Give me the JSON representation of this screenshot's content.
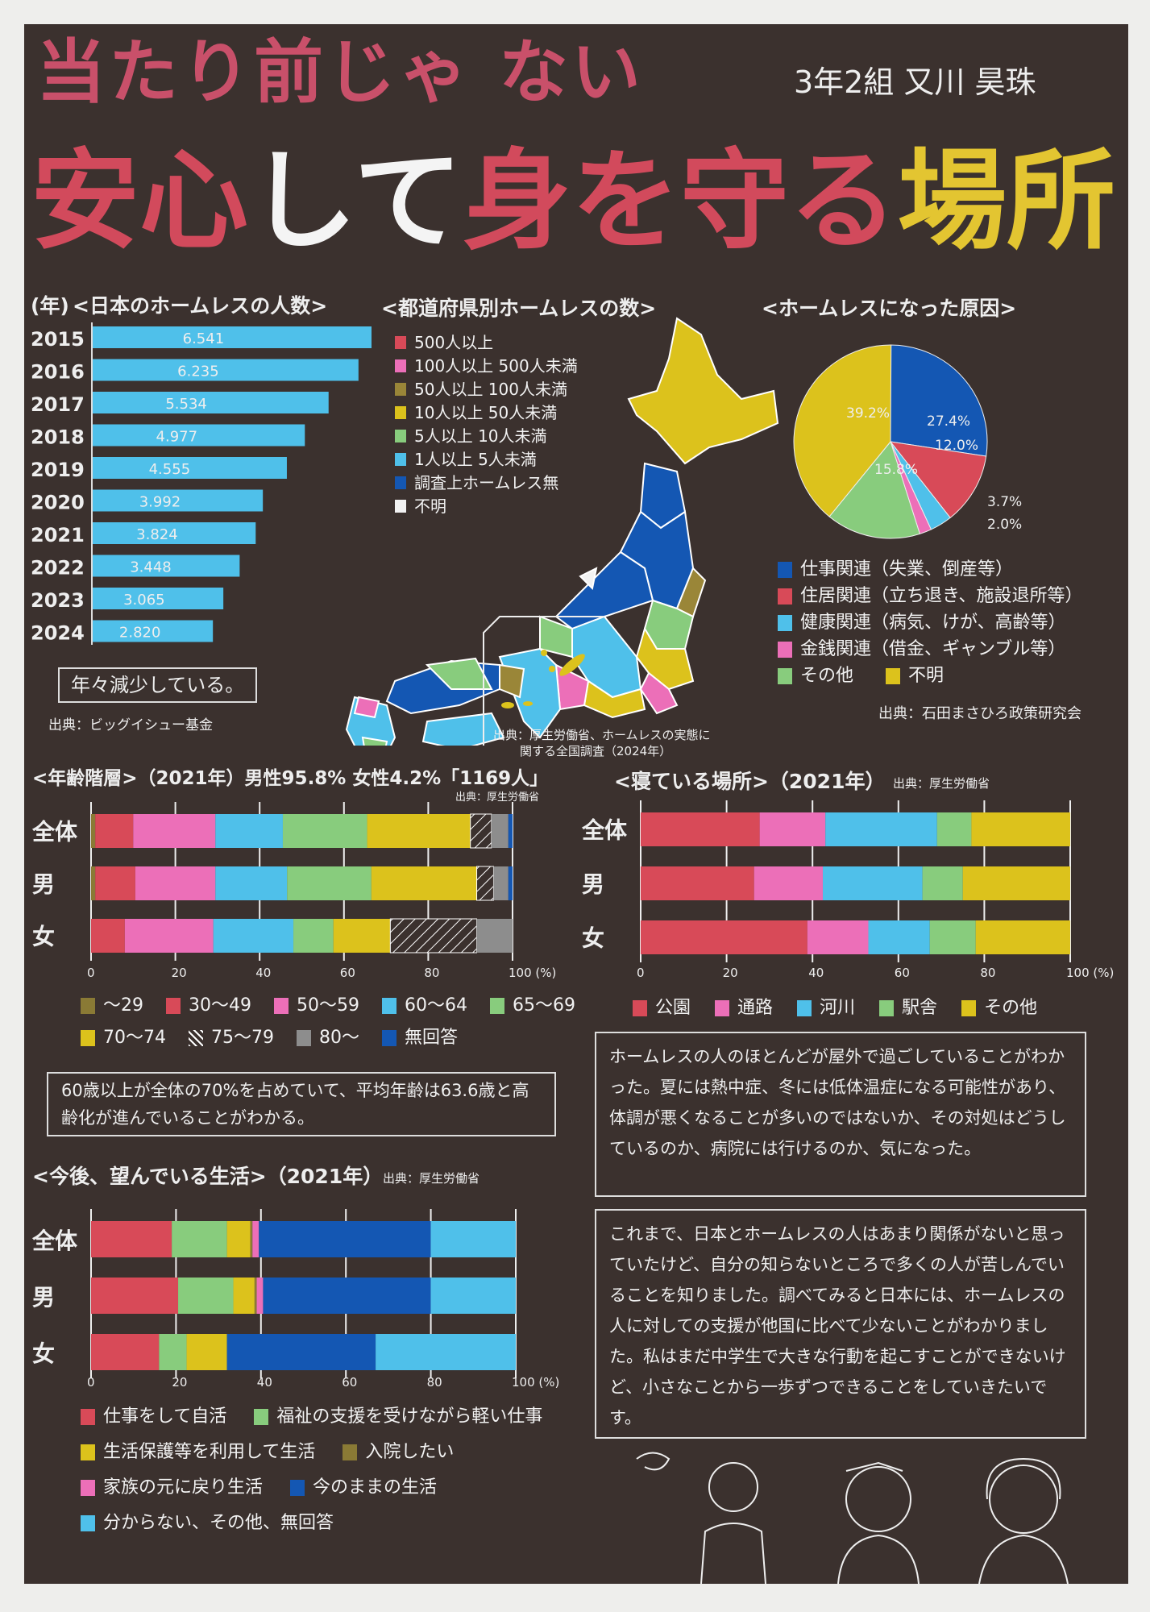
{
  "header": {
    "title_line1": "当たり前じゃ ない",
    "title_parts": [
      {
        "text": "安心",
        "color": "#d24a5c"
      },
      {
        "text": "して",
        "color": "#f4f4f4"
      },
      {
        "text": "身を守る",
        "color": "#d24a5c"
      },
      {
        "text": "場所",
        "color": "#e3c531"
      }
    ],
    "author": "3年2組 又川 昊珠"
  },
  "colors": {
    "board": "#3b312e",
    "red": "#d84a58",
    "pink": "#ec6fb8",
    "olive": "#8a7a35",
    "yellow": "#dcc21c",
    "green": "#88cc7d",
    "cyan": "#4fc0ea",
    "navy": "#1457b3",
    "white": "#f2f2f2",
    "gray": "#8d8d8d"
  },
  "chart_data": [
    {
      "id": "homeless_count",
      "type": "bar",
      "orientation": "horizontal",
      "title": "<日本のホームレスの人数>",
      "ylabel": "(年)",
      "categories": [
        "2015",
        "2016",
        "2017",
        "2018",
        "2019",
        "2020",
        "2021",
        "2022",
        "2023",
        "2024"
      ],
      "values": [
        6541,
        6235,
        5534,
        4977,
        4555,
        3992,
        3824,
        3448,
        3065,
        2820
      ],
      "value_labels": [
        "6.541",
        "6.235",
        "5.534",
        "4.977",
        "4.555",
        "3.992",
        "3.824",
        "3.448",
        "3.065",
        "2.820"
      ],
      "color": "#4fc0ea",
      "note": "年々減少している。",
      "source": "出典：ビッグイシュー基金"
    },
    {
      "id": "prefecture_map",
      "type": "map",
      "title": "<都道府県別ホームレスの数>",
      "legend": [
        {
          "label": "500人以上",
          "color": "#d84a58"
        },
        {
          "label": "100人以上 500人未満",
          "color": "#ec6fb8"
        },
        {
          "label": "50人以上 100人未満",
          "color": "#9a8638"
        },
        {
          "label": "10人以上 50人未満",
          "color": "#dcc21c"
        },
        {
          "label": "5人以上 10人未満",
          "color": "#88cc7d"
        },
        {
          "label": "1人以上 5人未満",
          "color": "#4fc0ea"
        },
        {
          "label": "調査上ホームレス無",
          "color": "#1457b3"
        },
        {
          "label": "不明",
          "color": "#f2f2f2"
        }
      ],
      "source": [
        "出典：厚生労働省、ホームレスの実態に",
        "関する全国調査（2024年）"
      ]
    },
    {
      "id": "causes",
      "type": "pie",
      "title": "<ホームレスになった原因>",
      "slices": [
        {
          "label": "仕事関連（失業、倒産等）",
          "value": 27.4,
          "text": "27.4%",
          "color": "#1457b3"
        },
        {
          "label": "住居関連（立ち退き、施設退所等）",
          "value": 12.0,
          "text": "12.0%",
          "color": "#d84a58"
        },
        {
          "label": "健康関連（病気、けが、高齢等）",
          "value": 3.7,
          "text": "3.7%",
          "color": "#4fc0ea"
        },
        {
          "label": "金銭関連（借金、ギャンブル等）",
          "value": 2.0,
          "text": "2.0%",
          "color": "#ec6fb8"
        },
        {
          "label": "その他",
          "value": 15.8,
          "text": "15.8%",
          "color": "#88cc7d"
        },
        {
          "label": "不明",
          "value": 39.2,
          "text": "39.2%",
          "color": "#dcc21c"
        }
      ],
      "source": "出典：石田まさひろ政策研究会"
    },
    {
      "id": "age",
      "type": "bar",
      "stacked": true,
      "orientation": "horizontal",
      "title": "<年齢階層>（2021年）男性95.8% 女性4.2%「1169人」",
      "source": "出典：厚生労働省",
      "categories": [
        "全体",
        "男",
        "女"
      ],
      "xlim": [
        0,
        100
      ],
      "xticks": [
        "0",
        "20",
        "40",
        "60",
        "80",
        "100 (%)"
      ],
      "series": [
        {
          "name": "～29",
          "color": "#8a7a35",
          "values": [
            1,
            1,
            0
          ]
        },
        {
          "name": "30～49",
          "color": "#d84a58",
          "values": [
            9,
            9.5,
            8
          ]
        },
        {
          "name": "50～59",
          "color": "#ec6fb8",
          "values": [
            19.5,
            19,
            21
          ]
        },
        {
          "name": "60～64",
          "color": "#4fc0ea",
          "values": [
            16,
            17,
            19
          ]
        },
        {
          "name": "65～69",
          "color": "#88cc7d",
          "values": [
            20,
            20,
            9.5
          ]
        },
        {
          "name": "70～74",
          "color": "#dcc21c",
          "values": [
            24.5,
            25,
            13.5
          ]
        },
        {
          "name": "75～79",
          "color": "hatch",
          "values": [
            5,
            4,
            20.5
          ]
        },
        {
          "name": "80～",
          "color": "#8d8d8d",
          "values": [
            4,
            3.5,
            8.5
          ]
        },
        {
          "name": "無回答",
          "color": "#1457b3",
          "values": [
            1,
            1,
            0
          ]
        }
      ],
      "note": "60歳以上が全体の70%を占めていて、平均年齢は63.6歳と高齢化が進んでいることがわかる。"
    },
    {
      "id": "sleeping_place",
      "type": "bar",
      "stacked": true,
      "orientation": "horizontal",
      "title": "<寝ている場所>（2021年）",
      "source": "出典：厚生労働省",
      "categories": [
        "全体",
        "男",
        "女"
      ],
      "xlim": [
        0,
        100
      ],
      "xticks": [
        "0",
        "20",
        "40",
        "60",
        "80",
        "100 (%)"
      ],
      "series": [
        {
          "name": "公園",
          "color": "#d84a58",
          "values": [
            27.7,
            26.4,
            38.8
          ]
        },
        {
          "name": "通路",
          "color": "#ec6fb8",
          "values": [
            15.3,
            16,
            14.2
          ]
        },
        {
          "name": "河川",
          "color": "#4fc0ea",
          "values": [
            26,
            23.2,
            14.3
          ]
        },
        {
          "name": "駅舎",
          "color": "#88cc7d",
          "values": [
            8,
            9.4,
            10.7
          ]
        },
        {
          "name": "その他",
          "color": "#dcc21c",
          "values": [
            23,
            25,
            22
          ]
        }
      ]
    },
    {
      "id": "future_life",
      "type": "bar",
      "stacked": true,
      "orientation": "horizontal",
      "title": "<今後、望んでいる生活>（2021年）",
      "source": "出典：厚生労働省",
      "categories": [
        "全体",
        "男",
        "女"
      ],
      "xlim": [
        0,
        100
      ],
      "xticks": [
        "0",
        "20",
        "40",
        "60",
        "80",
        "100 (%)"
      ],
      "series": [
        {
          "name": "仕事をして自活",
          "color": "#d84a58",
          "values": [
            19,
            20.5,
            16
          ]
        },
        {
          "name": "福祉の支援を受けながら軽い仕事",
          "color": "#88cc7d",
          "values": [
            13,
            13,
            6.5
          ]
        },
        {
          "name": "生活保護等を利用して生活",
          "color": "#dcc21c",
          "values": [
            5.5,
            5,
            9.5
          ]
        },
        {
          "name": "入院したい",
          "color": "#8a7a35",
          "values": [
            0.5,
            0.5,
            0
          ]
        },
        {
          "name": "家族の元に戻り生活",
          "color": "#ec6fb8",
          "values": [
            1.5,
            1.5,
            0
          ]
        },
        {
          "name": "今のままの生活",
          "color": "#1457b3",
          "values": [
            40.5,
            39.5,
            35
          ]
        },
        {
          "name": "分からない、その他、無回答",
          "color": "#4fc0ea",
          "values": [
            20,
            20,
            33
          ]
        }
      ]
    }
  ],
  "notes": {
    "sleeping": "ホームレスの人のほとんどが屋外で過ごしていることがわかった。夏には熱中症、冬には低体温症になる可能性があり、体調が悪くなることが多いのではないか、その対処はどうしているのか、病院には行けるのか、気になった。",
    "conclusion": "これまで、日本とホームレスの人はあまり関係がないと思っていたけど、自分の知らないところで多くの人が苦しんでいることを知りました。調べてみると日本には、ホームレスの人に対しての支援が他国に比べて少ないことがわかりました。私はまだ中学生で大きな行動を起こすことができないけど、小さなことから一歩ずつできることをしていきたいです。"
  }
}
